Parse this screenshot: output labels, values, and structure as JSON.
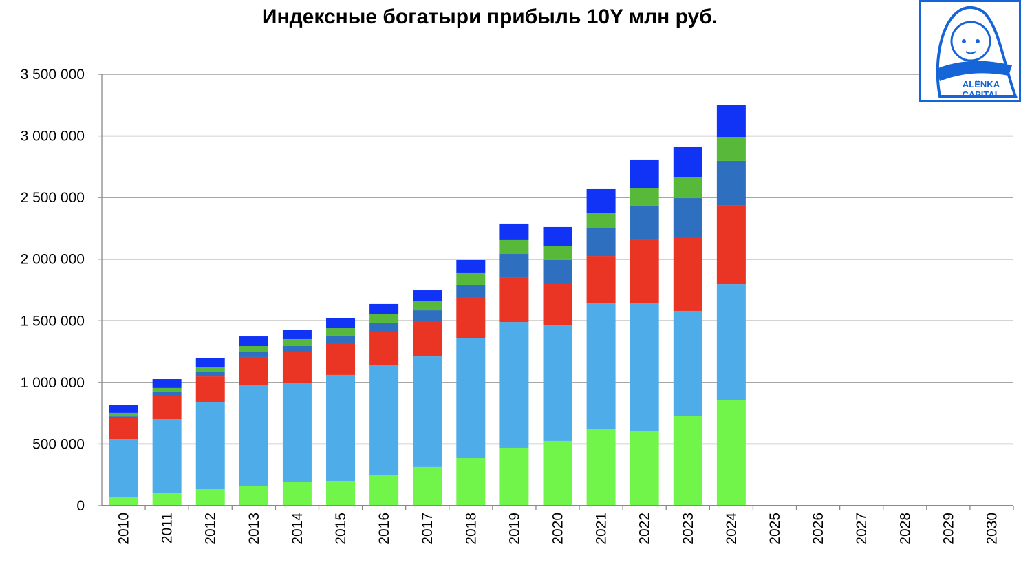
{
  "chart_data": {
    "type": "bar",
    "stacked": true,
    "title": "Индексные богатыри прибыль 10Y млн руб.",
    "xlabel": "",
    "ylabel": "",
    "ylim": [
      0,
      3500000
    ],
    "yticks": [
      0,
      500000,
      1000000,
      1500000,
      2000000,
      2500000,
      3000000,
      3500000
    ],
    "ytick_labels": [
      "0",
      "500 000",
      "1 000 000",
      "1 500 000",
      "2 000 000",
      "2 500 000",
      "3 000 000",
      "3 500 000"
    ],
    "grid": true,
    "legend": "none",
    "categories": [
      "2010",
      "2011",
      "2012",
      "2013",
      "2014",
      "2015",
      "2016",
      "2017",
      "2018",
      "2019",
      "2020",
      "2021",
      "2022",
      "2023",
      "2024",
      "2025",
      "2026",
      "2027",
      "2028",
      "2029",
      "2030"
    ],
    "series": [
      {
        "color": "#72F54A",
        "values": [
          67000,
          100000,
          134000,
          162000,
          190000,
          201000,
          246000,
          313000,
          385000,
          469000,
          525000,
          620000,
          608000,
          726000,
          854000,
          null,
          null,
          null,
          null,
          null,
          null
        ]
      },
      {
        "color": "#4EADE8",
        "values": [
          474000,
          603000,
          709000,
          815000,
          804000,
          860000,
          893000,
          898000,
          977000,
          1021000,
          937000,
          1021000,
          1033000,
          854000,
          943000,
          null,
          null,
          null,
          null,
          null,
          null
        ]
      },
      {
        "color": "#EA3424",
        "values": [
          168000,
          190000,
          206000,
          229000,
          256000,
          262000,
          268000,
          285000,
          324000,
          363000,
          341000,
          385000,
          514000,
          597000,
          642000,
          null,
          null,
          null,
          null,
          null,
          null
        ]
      },
      {
        "color": "#2F6FBF",
        "values": [
          16000,
          28000,
          34000,
          44000,
          45000,
          56000,
          78000,
          89000,
          106000,
          190000,
          190000,
          224000,
          279000,
          318000,
          358000,
          null,
          null,
          null,
          null,
          null,
          null
        ]
      },
      {
        "color": "#57B83A",
        "values": [
          29000,
          34000,
          39000,
          45000,
          56000,
          61000,
          67000,
          78000,
          95000,
          112000,
          117000,
          128000,
          145000,
          168000,
          195000,
          null,
          null,
          null,
          null,
          null,
          null
        ]
      },
      {
        "color": "#1133F5",
        "values": [
          66000,
          72000,
          78000,
          78000,
          78000,
          84000,
          84000,
          84000,
          106000,
          134000,
          151000,
          190000,
          229000,
          251000,
          257000,
          null,
          null,
          null,
          null,
          null,
          null
        ]
      }
    ]
  },
  "logo": {
    "text_line1": "ALЁNKA",
    "text_line2": "CAPITAL",
    "color": "#1565D8"
  }
}
